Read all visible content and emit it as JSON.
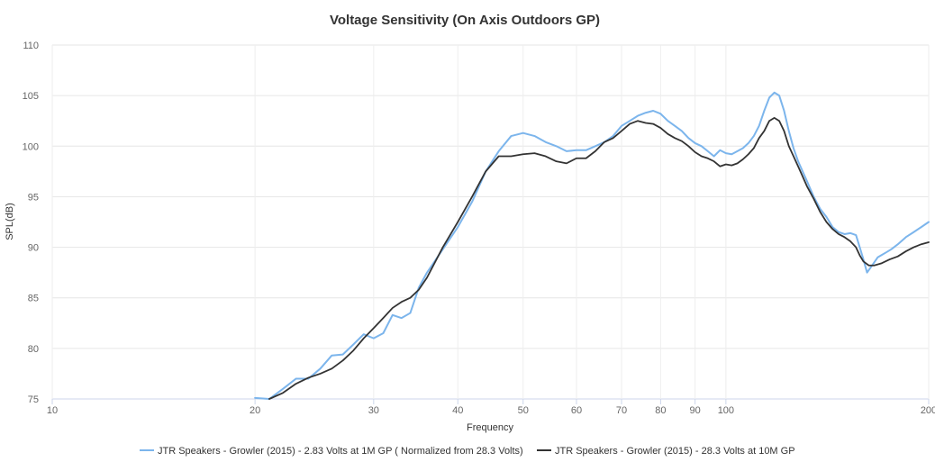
{
  "chart_data": {
    "type": "line",
    "title": "Voltage Sensitivity (On Axis Outdoors GP)",
    "xlabel": "Frequency",
    "ylabel": "SPL(dB)",
    "x_scale": "log",
    "xlim": [
      10,
      200
    ],
    "ylim": [
      75,
      110
    ],
    "x_ticks": [
      10,
      20,
      30,
      40,
      50,
      60,
      70,
      80,
      90,
      100,
      200
    ],
    "y_ticks": [
      75,
      80,
      85,
      90,
      95,
      100,
      105,
      110
    ],
    "grid": true,
    "legend_position": "bottom",
    "series": [
      {
        "name": "JTR Speakers - Growler (2015) - 2.83 Volts at 1M GP ( Normalized from 28.3 Volts)",
        "color": "#7cb5ec",
        "points": [
          [
            20.0,
            75.1
          ],
          [
            21.0,
            75.0
          ],
          [
            22.0,
            76.0
          ],
          [
            23.0,
            77.0
          ],
          [
            24.0,
            77.0
          ],
          [
            25.0,
            78.0
          ],
          [
            26.0,
            79.3
          ],
          [
            27.0,
            79.4
          ],
          [
            28.0,
            80.4
          ],
          [
            29.0,
            81.4
          ],
          [
            30.0,
            81.0
          ],
          [
            31.0,
            81.5
          ],
          [
            32.0,
            83.3
          ],
          [
            33.0,
            83.0
          ],
          [
            34.0,
            83.5
          ],
          [
            35.0,
            86.0
          ],
          [
            36.0,
            87.5
          ],
          [
            38.0,
            89.8
          ],
          [
            40.0,
            92.0
          ],
          [
            42.0,
            94.5
          ],
          [
            44.0,
            97.5
          ],
          [
            46.0,
            99.5
          ],
          [
            48.0,
            101.0
          ],
          [
            50.0,
            101.3
          ],
          [
            52.0,
            101.0
          ],
          [
            54.0,
            100.4
          ],
          [
            56.0,
            100.0
          ],
          [
            58.0,
            99.5
          ],
          [
            60.0,
            99.6
          ],
          [
            62.0,
            99.6
          ],
          [
            64.0,
            100.0
          ],
          [
            66.0,
            100.4
          ],
          [
            68.0,
            101.0
          ],
          [
            70.0,
            102.0
          ],
          [
            72.0,
            102.5
          ],
          [
            74.0,
            103.0
          ],
          [
            76.0,
            103.3
          ],
          [
            78.0,
            103.5
          ],
          [
            80.0,
            103.2
          ],
          [
            82.0,
            102.5
          ],
          [
            84.0,
            102.0
          ],
          [
            86.0,
            101.5
          ],
          [
            88.0,
            100.8
          ],
          [
            90.0,
            100.3
          ],
          [
            92.0,
            100.0
          ],
          [
            94.0,
            99.5
          ],
          [
            96.0,
            99.0
          ],
          [
            98.0,
            99.6
          ],
          [
            100.0,
            99.3
          ],
          [
            102.0,
            99.2
          ],
          [
            104.0,
            99.5
          ],
          [
            106.0,
            99.8
          ],
          [
            108.0,
            100.3
          ],
          [
            110.0,
            101.0
          ],
          [
            112.0,
            102.0
          ],
          [
            114.0,
            103.5
          ],
          [
            116.0,
            104.8
          ],
          [
            118.0,
            105.3
          ],
          [
            120.0,
            105.0
          ],
          [
            122.0,
            103.5
          ],
          [
            124.0,
            101.5
          ],
          [
            126.0,
            99.8
          ],
          [
            128.0,
            98.5
          ],
          [
            130.0,
            97.5
          ],
          [
            132.0,
            96.5
          ],
          [
            135.0,
            95.0
          ],
          [
            138.0,
            93.8
          ],
          [
            141.0,
            93.0
          ],
          [
            144.0,
            92.0
          ],
          [
            147.0,
            91.5
          ],
          [
            150.0,
            91.3
          ],
          [
            153.0,
            91.4
          ],
          [
            156.0,
            91.2
          ],
          [
            158.0,
            90.0
          ],
          [
            160.0,
            88.8
          ],
          [
            162.0,
            87.5
          ],
          [
            164.0,
            88.0
          ],
          [
            166.0,
            88.5
          ],
          [
            168.0,
            89.0
          ],
          [
            170.0,
            89.2
          ],
          [
            173.0,
            89.5
          ],
          [
            176.0,
            89.8
          ],
          [
            180.0,
            90.3
          ],
          [
            185.0,
            91.0
          ],
          [
            190.0,
            91.5
          ],
          [
            195.0,
            92.0
          ],
          [
            200.0,
            92.5
          ]
        ]
      },
      {
        "name": "JTR Speakers - Growler (2015) - 28.3 Volts at 10M GP",
        "color": "#333333",
        "points": [
          [
            21.0,
            75.0
          ],
          [
            22.0,
            75.6
          ],
          [
            23.0,
            76.5
          ],
          [
            24.0,
            77.1
          ],
          [
            25.0,
            77.5
          ],
          [
            26.0,
            78.0
          ],
          [
            27.0,
            78.8
          ],
          [
            28.0,
            79.8
          ],
          [
            29.0,
            81.0
          ],
          [
            30.0,
            82.0
          ],
          [
            31.0,
            83.0
          ],
          [
            32.0,
            84.0
          ],
          [
            33.0,
            84.6
          ],
          [
            34.0,
            85.0
          ],
          [
            35.0,
            85.8
          ],
          [
            36.0,
            87.0
          ],
          [
            38.0,
            90.0
          ],
          [
            40.0,
            92.5
          ],
          [
            42.0,
            95.0
          ],
          [
            44.0,
            97.5
          ],
          [
            46.0,
            99.0
          ],
          [
            48.0,
            99.0
          ],
          [
            50.0,
            99.2
          ],
          [
            52.0,
            99.3
          ],
          [
            54.0,
            99.0
          ],
          [
            56.0,
            98.5
          ],
          [
            58.0,
            98.3
          ],
          [
            60.0,
            98.8
          ],
          [
            62.0,
            98.8
          ],
          [
            64.0,
            99.5
          ],
          [
            66.0,
            100.4
          ],
          [
            68.0,
            100.8
          ],
          [
            70.0,
            101.5
          ],
          [
            72.0,
            102.2
          ],
          [
            74.0,
            102.5
          ],
          [
            76.0,
            102.3
          ],
          [
            78.0,
            102.2
          ],
          [
            80.0,
            101.8
          ],
          [
            82.0,
            101.2
          ],
          [
            84.0,
            100.8
          ],
          [
            86.0,
            100.5
          ],
          [
            88.0,
            100.0
          ],
          [
            90.0,
            99.4
          ],
          [
            92.0,
            99.0
          ],
          [
            94.0,
            98.8
          ],
          [
            96.0,
            98.5
          ],
          [
            98.0,
            98.0
          ],
          [
            100.0,
            98.2
          ],
          [
            102.0,
            98.1
          ],
          [
            104.0,
            98.3
          ],
          [
            106.0,
            98.7
          ],
          [
            108.0,
            99.2
          ],
          [
            110.0,
            99.8
          ],
          [
            112.0,
            100.8
          ],
          [
            114.0,
            101.5
          ],
          [
            116.0,
            102.5
          ],
          [
            118.0,
            102.8
          ],
          [
            120.0,
            102.5
          ],
          [
            122.0,
            101.5
          ],
          [
            124.0,
            100.0
          ],
          [
            126.0,
            99.0
          ],
          [
            128.0,
            98.0
          ],
          [
            130.0,
            97.0
          ],
          [
            132.0,
            96.0
          ],
          [
            135.0,
            94.8
          ],
          [
            138.0,
            93.5
          ],
          [
            141.0,
            92.5
          ],
          [
            144.0,
            91.8
          ],
          [
            147.0,
            91.3
          ],
          [
            150.0,
            91.0
          ],
          [
            153.0,
            90.6
          ],
          [
            156.0,
            90.0
          ],
          [
            158.0,
            89.2
          ],
          [
            160.0,
            88.6
          ],
          [
            163.0,
            88.2
          ],
          [
            166.0,
            88.2
          ],
          [
            170.0,
            88.4
          ],
          [
            175.0,
            88.8
          ],
          [
            180.0,
            89.1
          ],
          [
            185.0,
            89.6
          ],
          [
            190.0,
            90.0
          ],
          [
            195.0,
            90.3
          ],
          [
            200.0,
            90.5
          ]
        ]
      }
    ]
  }
}
